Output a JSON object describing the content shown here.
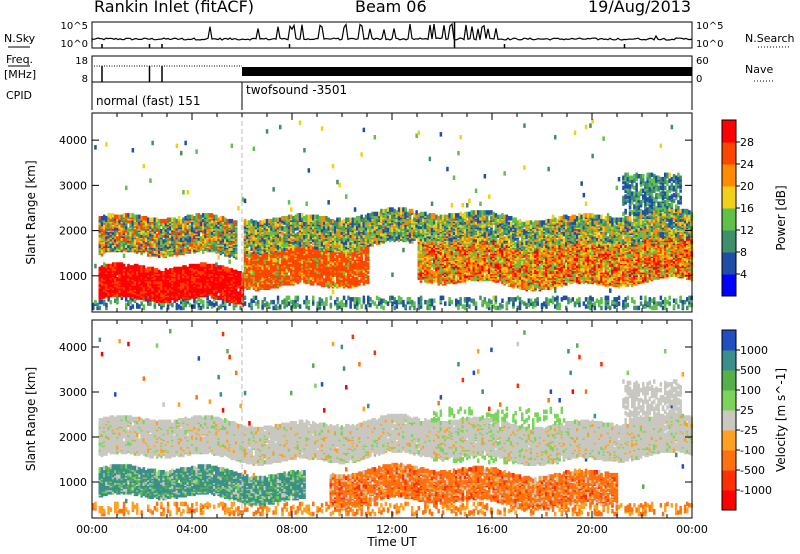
{
  "header": {
    "station": "Rankin Inlet (fitACF)",
    "beam": "Beam 06",
    "date": "19/Aug/2013"
  },
  "panels": {
    "nsky": {
      "label": "N.Sky",
      "right_label": "N.Search",
      "ticks_left": [
        "10^5",
        "10^0"
      ],
      "ticks_right": [
        "10^5",
        "10^0"
      ]
    },
    "freq": {
      "label_top": "Freq.",
      "label_unit": "[MHz]",
      "right_label": "Nave",
      "ticks_left": [
        "18",
        "8"
      ],
      "ticks_right": [
        "60",
        "0"
      ]
    },
    "cpid": {
      "label": "CPID",
      "modes": [
        {
          "name": "normal (fast) 151",
          "start_hour": 0,
          "end_hour": 6
        },
        {
          "name": "twofsound -3501",
          "start_hour": 6,
          "end_hour": 24
        }
      ]
    }
  },
  "chart_data": [
    {
      "type": "heatmap",
      "name": "Power",
      "xlabel": "",
      "ylabel": "Slant Range [km]",
      "xlim": [
        0,
        24
      ],
      "ylim": [
        200,
        4600
      ],
      "yticks": [
        1000,
        2000,
        3000,
        4000
      ],
      "colorbar": {
        "label": "Power [dB]",
        "ticks": [
          "4",
          "8",
          "12",
          "16",
          "20",
          "24",
          "28"
        ],
        "colors": [
          "#0000ff",
          "#1e4ea8",
          "#3f8f6b",
          "#5fc04a",
          "#f2d019",
          "#ff8c00",
          "#ff4500",
          "#ff0000"
        ]
      },
      "bands": [
        {
          "t0": 0.2,
          "t1": 5.8,
          "r0": 1400,
          "r1": 2200,
          "value": "orange/green"
        },
        {
          "t0": 0.2,
          "t1": 6.0,
          "r0": 400,
          "r1": 1100,
          "value": "red"
        },
        {
          "t0": 6.0,
          "t1": 11.0,
          "r0": 800,
          "r1": 1600,
          "value": "red"
        },
        {
          "t0": 6.0,
          "t1": 24.0,
          "r0": 1600,
          "r1": 2300,
          "value": "green/yellow"
        },
        {
          "t0": 13.0,
          "t1": 24.0,
          "r0": 800,
          "r1": 1700,
          "value": "orange/red"
        }
      ]
    },
    {
      "type": "heatmap",
      "name": "Velocity",
      "xlabel": "Time UT",
      "ylabel": "Slant Range [km]",
      "xlim": [
        0,
        24
      ],
      "ylim": [
        200,
        4600
      ],
      "xticks": [
        "00:00",
        "04:00",
        "08:00",
        "12:00",
        "16:00",
        "20:00",
        "00:00"
      ],
      "yticks": [
        1000,
        2000,
        3000,
        4000
      ],
      "colorbar": {
        "label": "Velocity [m s^-1]",
        "ticks": [
          "1000",
          "500",
          "100",
          "25",
          "-25",
          "-100",
          "-500",
          "-1000"
        ],
        "colors": [
          "#1f4fc0",
          "#3a8f8a",
          "#55b04a",
          "#7ad45a",
          "#c8c8c0",
          "#ffa020",
          "#ff7010",
          "#ff3000",
          "#ff0000"
        ]
      },
      "bands": [
        {
          "t0": 0.2,
          "t1": 24.0,
          "r0": 1500,
          "r1": 2300,
          "value": "grey (~0 m/s)"
        },
        {
          "t0": 0.2,
          "t1": 8.5,
          "r0": 600,
          "r1": 1200,
          "value": "green (+100 to +500 m/s)"
        },
        {
          "t0": 9.5,
          "t1": 21.0,
          "r0": 500,
          "r1": 1200,
          "value": "orange (-100 to -500 m/s)"
        }
      ]
    }
  ]
}
